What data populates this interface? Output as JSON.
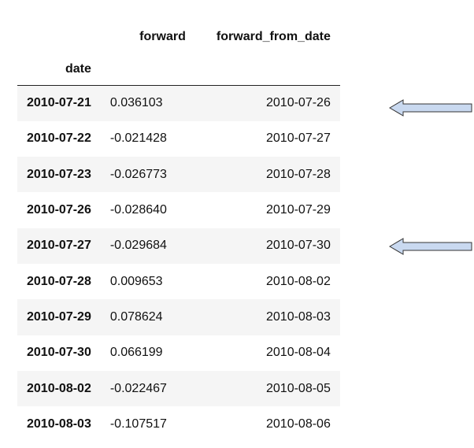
{
  "table": {
    "columns": [
      "forward",
      "forward_from_date"
    ],
    "index_name": "date",
    "rows": [
      {
        "date": "2010-07-21",
        "forward": "0.036103",
        "forward_from_date": "2010-07-26"
      },
      {
        "date": "2010-07-22",
        "forward": "-0.021428",
        "forward_from_date": "2010-07-27"
      },
      {
        "date": "2010-07-23",
        "forward": "-0.026773",
        "forward_from_date": "2010-07-28"
      },
      {
        "date": "2010-07-26",
        "forward": "-0.028640",
        "forward_from_date": "2010-07-29"
      },
      {
        "date": "2010-07-27",
        "forward": "-0.029684",
        "forward_from_date": "2010-07-30"
      },
      {
        "date": "2010-07-28",
        "forward": "0.009653",
        "forward_from_date": "2010-08-02"
      },
      {
        "date": "2010-07-29",
        "forward": "0.078624",
        "forward_from_date": "2010-08-03"
      },
      {
        "date": "2010-07-30",
        "forward": "0.066199",
        "forward_from_date": "2010-08-04"
      },
      {
        "date": "2010-08-02",
        "forward": "-0.022467",
        "forward_from_date": "2010-08-05"
      },
      {
        "date": "2010-08-03",
        "forward": "-0.107517",
        "forward_from_date": "2010-08-06"
      }
    ]
  },
  "annotations": {
    "arrow_color": "#c9d9f0",
    "arrow_stroke": "#333333",
    "pointed_rows": [
      "2010-07-21",
      "2010-07-27"
    ]
  },
  "colors": {
    "striped_row_bg": "#f5f5f5",
    "header_rule": "#222222"
  }
}
